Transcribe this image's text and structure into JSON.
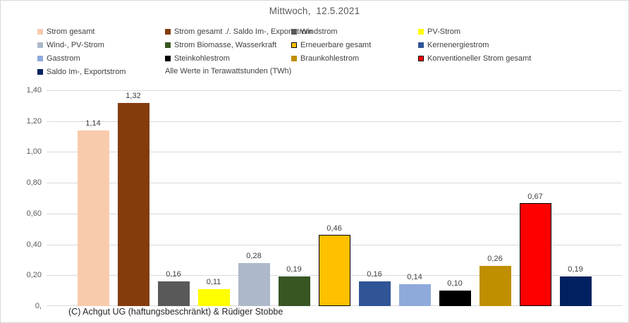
{
  "chart_data": {
    "type": "bar",
    "title": "Mittwoch,  12.5.2021",
    "note": "Alle Werte in Terawattstunden (TWh)",
    "footer": "(C) Achgut UG (haftungsbeschränkt) & Rüdiger Stobbe",
    "ylim": [
      0,
      1.4
    ],
    "grid": true,
    "legend_position": "top",
    "gridline_color": "#d9d9d9",
    "bar_border_color": "#000000",
    "yticks": [
      {
        "value": 1.4,
        "label": "1,40"
      },
      {
        "value": 1.2,
        "label": "1,20"
      },
      {
        "value": 1.0,
        "label": "1,00"
      },
      {
        "value": 0.8,
        "label": "0,80"
      },
      {
        "value": 0.6,
        "label": "0,60"
      },
      {
        "value": 0.4,
        "label": "0,40"
      },
      {
        "value": 0.2,
        "label": "0,20"
      },
      {
        "value": 0.0,
        "label": "0,"
      }
    ],
    "series": [
      {
        "name": "Strom gesamt",
        "value": 1.14,
        "label": "1,14",
        "color": "#F8CBAD",
        "border": false
      },
      {
        "name": "Strom gesamt ./. Saldo Im-, Exportstrom",
        "value": 1.32,
        "label": "1,32",
        "color": "#843C0C",
        "border": false
      },
      {
        "name": "Windstrom",
        "value": 0.16,
        "label": "0,16",
        "color": "#595959",
        "border": false
      },
      {
        "name": "PV-Strom",
        "value": 0.11,
        "label": "0,11",
        "color": "#FFFF00",
        "border": false
      },
      {
        "name": "Wind-, PV-Strom",
        "value": 0.28,
        "label": "0,28",
        "color": "#ADB9CA",
        "border": false
      },
      {
        "name": "Strom Biomasse, Wasserkraft",
        "value": 0.19,
        "label": "0,19",
        "color": "#375623",
        "border": false
      },
      {
        "name": "Erneuerbare gesamt",
        "value": 0.46,
        "label": "0,46",
        "color": "#FFC000",
        "border": true
      },
      {
        "name": "Kernenergiestrom",
        "value": 0.16,
        "label": "0,16",
        "color": "#2F5597",
        "border": false
      },
      {
        "name": "Gasstrom",
        "value": 0.14,
        "label": "0,14",
        "color": "#8EAADB",
        "border": false
      },
      {
        "name": "Steinkohlestrom",
        "value": 0.1,
        "label": "0,10",
        "color": "#000000",
        "border": false
      },
      {
        "name": "Braunkohlestrom",
        "value": 0.26,
        "label": "0,26",
        "color": "#BF8F00",
        "border": false
      },
      {
        "name": "Konventioneller Strom gesamt",
        "value": 0.67,
        "label": "0,67",
        "color": "#FF0000",
        "border": true
      },
      {
        "name": "Saldo Im-, Exportstrom",
        "value": 0.19,
        "label": "0,19",
        "color": "#002060",
        "border": false
      }
    ]
  }
}
